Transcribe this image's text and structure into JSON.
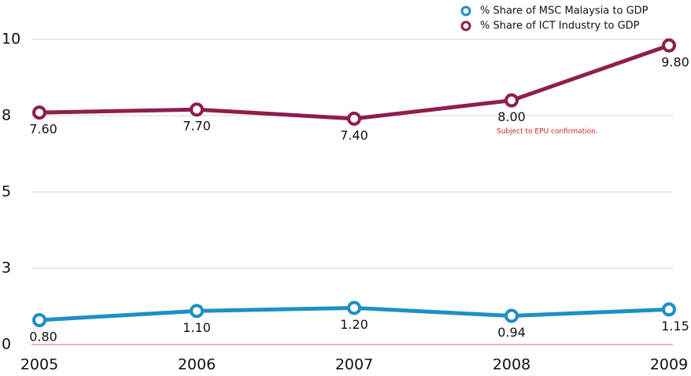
{
  "chart_data": {
    "type": "line",
    "categories": [
      "2005",
      "2006",
      "2007",
      "2008",
      "2009"
    ],
    "series": [
      {
        "name": "% Share of MSC Malaysia to GDP",
        "color": "#1f8fc4",
        "values": [
          0.8,
          1.1,
          1.2,
          0.94,
          1.15
        ],
        "value_labels": [
          "0.80",
          "1.10",
          "1.20",
          "0.94",
          "1.15"
        ]
      },
      {
        "name": "% Share of ICT Industry to GDP",
        "color": "#8e1e4e",
        "values": [
          7.6,
          7.7,
          7.4,
          8.0,
          9.8
        ],
        "value_labels": [
          "7.60",
          "7.70",
          "7.40",
          "8.00",
          "9.80"
        ]
      }
    ],
    "ylim": [
      0,
      10
    ],
    "yticks": [
      0,
      {
        "value": 2.5,
        "label": "3"
      },
      5,
      {
        "value": 7.5,
        "label": "8"
      },
      10
    ],
    "grid": true,
    "legend": "top-right",
    "annotation": "Subject to EPU confirmation."
  }
}
